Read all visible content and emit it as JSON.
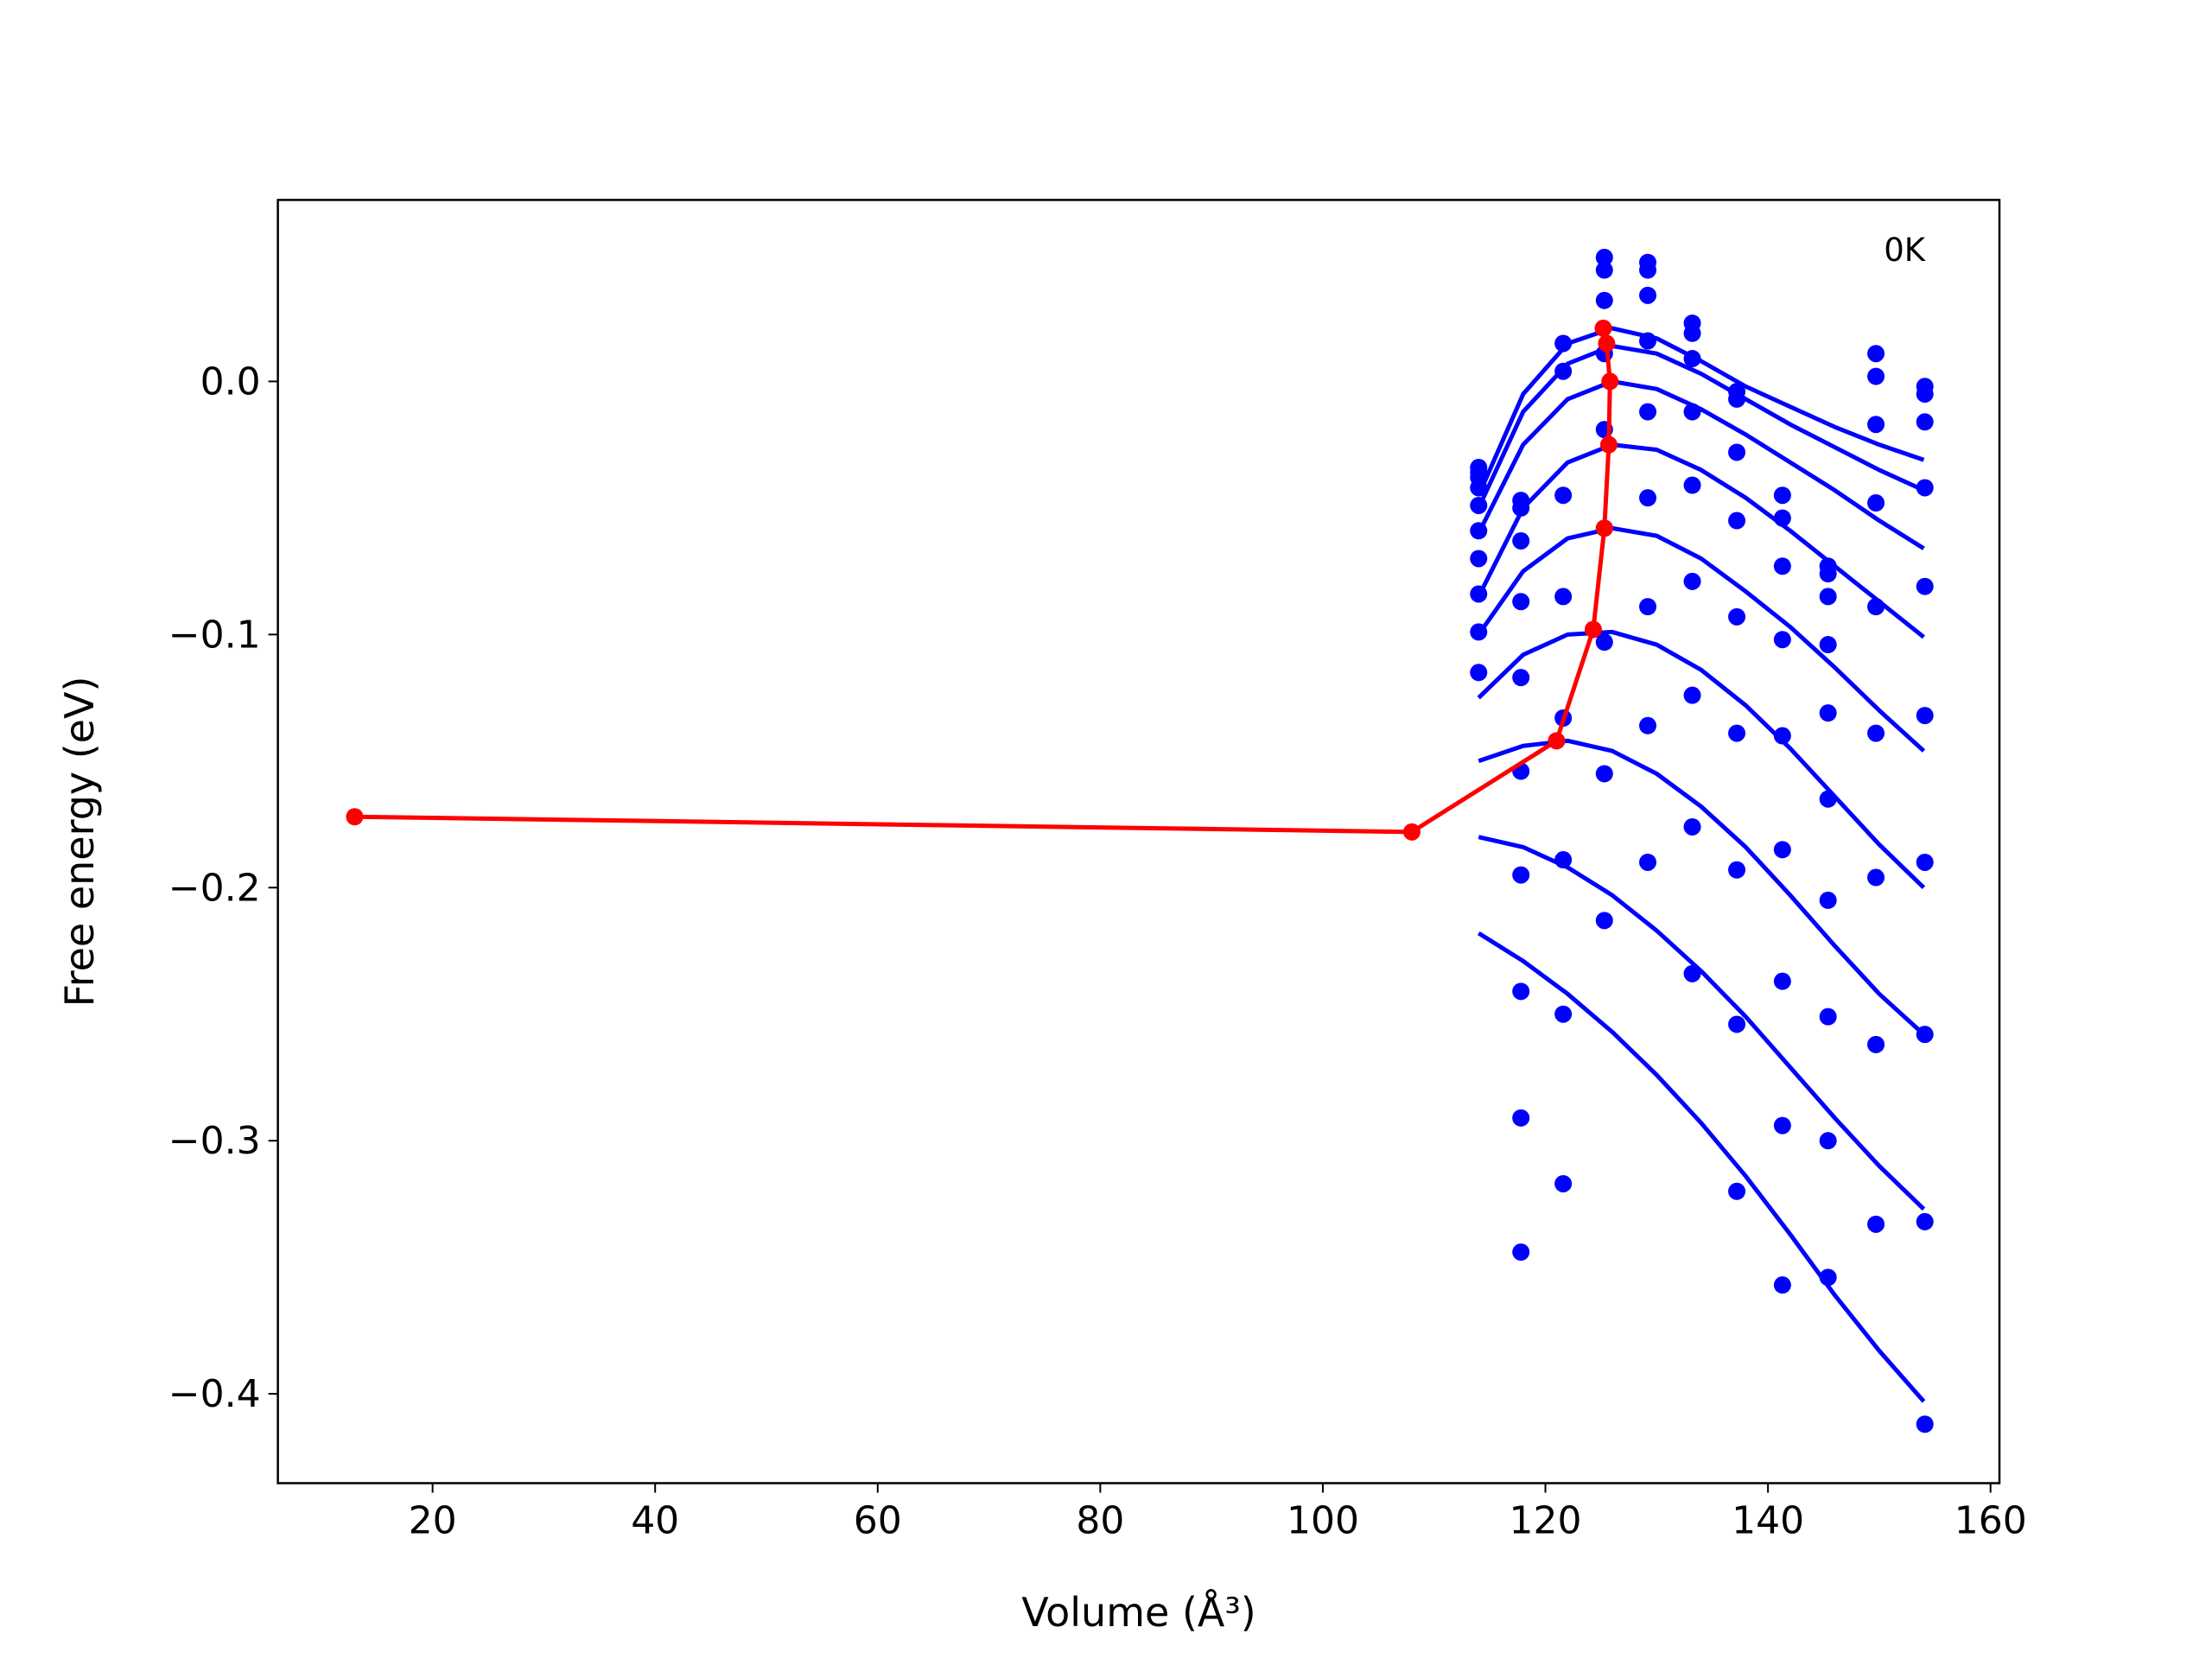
{
  "chart_data": {
    "type": "line",
    "xlabel": "Volume (Å³)",
    "ylabel": "Free energy (eV)",
    "annotation": "0K",
    "xlim": [
      6.1,
      160.8
    ],
    "ylim": [
      -0.4353,
      0.0717
    ],
    "xticks": [
      20,
      40,
      60,
      80,
      100,
      120,
      140,
      160
    ],
    "yticks": [
      {
        "value": 0.0,
        "label": "0.0"
      },
      {
        "value": -0.1,
        "label": "−0.1"
      },
      {
        "value": -0.2,
        "label": "−0.2"
      },
      {
        "value": -0.3,
        "label": "−0.3"
      },
      {
        "value": -0.4,
        "label": "−0.4"
      }
    ],
    "series": [
      {
        "type": "line",
        "color": "#0000ff",
        "x": [
          114,
          118,
          122,
          126,
          130,
          134,
          138,
          142,
          146,
          150,
          154
        ],
        "values": [
          -0.045,
          -0.005,
          0.015,
          0.021,
          0.017,
          0.008,
          -0.002,
          -0.01,
          -0.018,
          -0.025,
          -0.031
        ]
      },
      {
        "type": "line",
        "color": "#0000ff",
        "x": [
          114,
          118,
          122,
          126,
          130,
          134,
          138,
          142,
          146,
          150,
          154
        ],
        "values": [
          -0.05,
          -0.012,
          0.007,
          0.014,
          0.011,
          0.003,
          -0.007,
          -0.017,
          -0.026,
          -0.035,
          -0.043
        ]
      },
      {
        "type": "line",
        "color": "#0000ff",
        "x": [
          114,
          118,
          122,
          126,
          130,
          134,
          138,
          142,
          146,
          150,
          154
        ],
        "values": [
          -0.06,
          -0.025,
          -0.007,
          0.0,
          -0.003,
          -0.011,
          -0.021,
          -0.032,
          -0.043,
          -0.055,
          -0.066
        ]
      },
      {
        "type": "line",
        "color": "#0000ff",
        "x": [
          114,
          118,
          122,
          126,
          130,
          134,
          138,
          142,
          146,
          150,
          154
        ],
        "values": [
          -0.085,
          -0.05,
          -0.032,
          -0.025,
          -0.027,
          -0.035,
          -0.046,
          -0.059,
          -0.073,
          -0.087,
          -0.101
        ]
      },
      {
        "type": "line",
        "color": "#0000ff",
        "x": [
          114,
          118,
          122,
          126,
          130,
          134,
          138,
          142,
          146,
          150,
          154
        ],
        "values": [
          -0.1,
          -0.075,
          -0.062,
          -0.058,
          -0.061,
          -0.07,
          -0.083,
          -0.097,
          -0.113,
          -0.13,
          -0.146
        ]
      },
      {
        "type": "line",
        "color": "#0000ff",
        "x": [
          114,
          118,
          122,
          126,
          130,
          134,
          138,
          142,
          146,
          150,
          154
        ],
        "values": [
          -0.125,
          -0.108,
          -0.1,
          -0.099,
          -0.104,
          -0.114,
          -0.128,
          -0.145,
          -0.164,
          -0.183,
          -0.2
        ]
      },
      {
        "type": "line",
        "color": "#0000ff",
        "x": [
          114,
          118,
          122,
          126,
          130,
          134,
          138,
          142,
          146,
          150,
          154
        ],
        "values": [
          -0.15,
          -0.144,
          -0.142,
          -0.146,
          -0.155,
          -0.168,
          -0.184,
          -0.203,
          -0.223,
          -0.242,
          -0.258
        ]
      },
      {
        "type": "line",
        "color": "#0000ff",
        "x": [
          114,
          118,
          122,
          126,
          130,
          134,
          138,
          142,
          146,
          150,
          154
        ],
        "values": [
          -0.18,
          -0.184,
          -0.192,
          -0.203,
          -0.217,
          -0.233,
          -0.251,
          -0.271,
          -0.291,
          -0.31,
          -0.327
        ]
      },
      {
        "type": "line",
        "color": "#0000ff",
        "x": [
          114,
          118,
          122,
          126,
          130,
          134,
          138,
          142,
          146,
          150,
          154
        ],
        "values": [
          -0.218,
          -0.229,
          -0.242,
          -0.257,
          -0.274,
          -0.293,
          -0.314,
          -0.337,
          -0.361,
          -0.383,
          -0.403
        ]
      },
      {
        "type": "scatter",
        "color": "#0000ff",
        "x": [
          114,
          114,
          114,
          114,
          114,
          114,
          114,
          114,
          114,
          114,
          117.8,
          117.8,
          117.8,
          117.8,
          117.8,
          117.8,
          117.8,
          117.8,
          117.8,
          117.8,
          121.6,
          121.6,
          121.6,
          121.6,
          121.6,
          121.6,
          121.6,
          121.6,
          125.3,
          125.3,
          125.3,
          125.3,
          125.3,
          125.3,
          125.3,
          125.3,
          125.3,
          129.2,
          129.2,
          129.2,
          129.2,
          129.2,
          129.2,
          129.2,
          129.2,
          129.2,
          133.2,
          133.2,
          133.2,
          133.2,
          133.2,
          133.2,
          133.2,
          133.2,
          133.2,
          137.2,
          137.2,
          137.2,
          137.2,
          137.2,
          137.2,
          137.2,
          137.2,
          137.2,
          141.3,
          141.3,
          141.3,
          141.3,
          141.3,
          141.3,
          141.3,
          141.3,
          141.3,
          145.4,
          145.4,
          145.4,
          145.4,
          145.4,
          145.4,
          145.4,
          145.4,
          145.4,
          145.4,
          149.7,
          149.7,
          149.7,
          149.7,
          149.7,
          149.7,
          149.7,
          149.7,
          149.7,
          154.1,
          154.1,
          154.1,
          154.1,
          154.1,
          154.1,
          154.1,
          154.1,
          154.1,
          154.1
        ],
        "values": [
          -0.034,
          -0.036,
          -0.038,
          -0.042,
          -0.049,
          -0.059,
          -0.07,
          -0.084,
          -0.099,
          -0.115,
          -0.047,
          -0.05,
          -0.063,
          -0.087,
          -0.117,
          -0.154,
          -0.195,
          -0.241,
          -0.291,
          -0.344,
          0.015,
          0.004,
          -0.045,
          -0.085,
          -0.133,
          -0.189,
          -0.25,
          -0.317,
          0.049,
          0.044,
          0.032,
          0.011,
          -0.019,
          -0.058,
          -0.103,
          -0.155,
          -0.213,
          0.047,
          0.044,
          0.034,
          0.016,
          -0.012,
          -0.046,
          -0.089,
          -0.136,
          -0.19,
          0.023,
          0.019,
          0.009,
          -0.012,
          -0.041,
          -0.079,
          -0.124,
          -0.176,
          -0.234,
          -0.004,
          -0.007,
          -0.028,
          -0.055,
          -0.093,
          -0.139,
          -0.193,
          -0.254,
          -0.32,
          -0.045,
          -0.054,
          -0.073,
          -0.102,
          -0.14,
          -0.185,
          -0.237,
          -0.294,
          -0.357,
          -0.073,
          -0.076,
          -0.085,
          -0.104,
          -0.131,
          -0.165,
          -0.205,
          -0.251,
          -0.3,
          -0.354,
          0.011,
          0.002,
          -0.017,
          -0.048,
          -0.089,
          -0.139,
          -0.196,
          -0.262,
          -0.333,
          -0.002,
          -0.005,
          -0.016,
          -0.042,
          -0.081,
          -0.132,
          -0.19,
          -0.258,
          -0.332,
          -0.412
        ]
      },
      {
        "type": "line-marker",
        "color": "#ff0000",
        "x": [
          13,
          108,
          121,
          124.3,
          125.3,
          125.7,
          125.8,
          125.5,
          125.2
        ],
        "values": [
          -0.172,
          -0.178,
          -0.142,
          -0.098,
          -0.058,
          -0.025,
          0.0,
          0.015,
          0.021
        ]
      }
    ]
  }
}
